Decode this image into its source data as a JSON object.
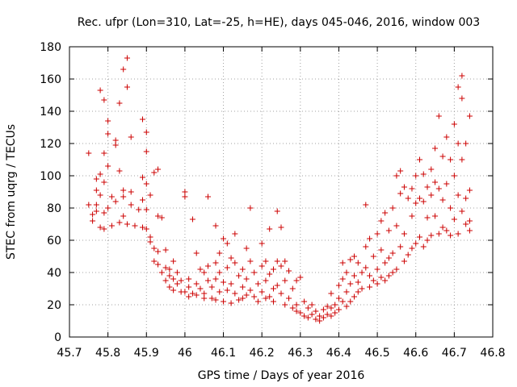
{
  "chart_data": {
    "type": "scatter",
    "title": "Rec. ufpr (Lon=310, Lat=-25, h=HE), days 045-046, 2016, window 003",
    "xlabel": "GPS time / Days of year 2016",
    "ylabel": "STEC from uqrg / TECUs",
    "xlim": [
      45.7,
      46.8
    ],
    "ylim": [
      0,
      180
    ],
    "xticks": [
      45.7,
      45.8,
      45.9,
      46,
      46.1,
      46.2,
      46.3,
      46.4,
      46.5,
      46.6,
      46.7,
      46.8
    ],
    "xtick_labels": [
      "45.7",
      "45.8",
      "45.9",
      "46",
      "46.1",
      "46.2",
      "46.3",
      "46.4",
      "46.5",
      "46.6",
      "46.7",
      "46.8"
    ],
    "yticks": [
      0,
      20,
      40,
      60,
      80,
      100,
      120,
      140,
      160,
      180
    ],
    "ytick_labels": [
      "0",
      "20",
      "40",
      "60",
      "80",
      "100",
      "120",
      "140",
      "160",
      "180"
    ],
    "grid": true,
    "grid_style": "dotted",
    "marker": "plus",
    "series": [
      {
        "color": "#cc0000",
        "points": [
          [
            45.75,
            114
          ],
          [
            45.75,
            82
          ],
          [
            45.76,
            76
          ],
          [
            45.76,
            72
          ],
          [
            45.77,
            98
          ],
          [
            45.77,
            91
          ],
          [
            45.77,
            82
          ],
          [
            45.77,
            78
          ],
          [
            45.78,
            68
          ],
          [
            45.78,
            153
          ],
          [
            45.78,
            101
          ],
          [
            45.78,
            88
          ],
          [
            45.79,
            147
          ],
          [
            45.79,
            114
          ],
          [
            45.79,
            96
          ],
          [
            45.79,
            77
          ],
          [
            45.79,
            67
          ],
          [
            45.8,
            134
          ],
          [
            45.8,
            126
          ],
          [
            45.8,
            106
          ],
          [
            45.8,
            80
          ],
          [
            45.81,
            69
          ],
          [
            45.81,
            87
          ],
          [
            45.82,
            122
          ],
          [
            45.82,
            119
          ],
          [
            45.82,
            84
          ],
          [
            45.83,
            145
          ],
          [
            45.83,
            103
          ],
          [
            45.83,
            71
          ],
          [
            45.84,
            166
          ],
          [
            45.84,
            91
          ],
          [
            45.84,
            87
          ],
          [
            45.84,
            75
          ],
          [
            45.85,
            173
          ],
          [
            45.85,
            155
          ],
          [
            45.85,
            70
          ],
          [
            45.86,
            124
          ],
          [
            45.86,
            90
          ],
          [
            45.86,
            82
          ],
          [
            45.87,
            69
          ],
          [
            45.88,
            79
          ],
          [
            45.89,
            135
          ],
          [
            45.89,
            99
          ],
          [
            45.89,
            85
          ],
          [
            45.89,
            68
          ],
          [
            45.9,
            127
          ],
          [
            45.9,
            115
          ],
          [
            45.9,
            95
          ],
          [
            45.9,
            79
          ],
          [
            45.9,
            67
          ],
          [
            45.91,
            88
          ],
          [
            45.91,
            62
          ],
          [
            45.91,
            59
          ],
          [
            45.92,
            102
          ],
          [
            45.92,
            55
          ],
          [
            45.92,
            47
          ],
          [
            45.93,
            104
          ],
          [
            45.93,
            75
          ],
          [
            45.93,
            53
          ],
          [
            45.93,
            45
          ],
          [
            45.94,
            74
          ],
          [
            45.94,
            40
          ],
          [
            45.95,
            54
          ],
          [
            45.95,
            43
          ],
          [
            45.95,
            35
          ],
          [
            45.96,
            42
          ],
          [
            45.96,
            38
          ],
          [
            45.96,
            31
          ],
          [
            45.97,
            47
          ],
          [
            45.97,
            36
          ],
          [
            45.97,
            29
          ],
          [
            45.98,
            40
          ],
          [
            45.98,
            33
          ],
          [
            45.99,
            35
          ],
          [
            45.99,
            28
          ],
          [
            46.0,
            90
          ],
          [
            46.0,
            87
          ],
          [
            46.0,
            28
          ],
          [
            46.01,
            36
          ],
          [
            46.01,
            31
          ],
          [
            46.01,
            25
          ],
          [
            46.02,
            73
          ],
          [
            46.02,
            27
          ],
          [
            46.03,
            52
          ],
          [
            46.03,
            33
          ],
          [
            46.03,
            26
          ],
          [
            46.04,
            42
          ],
          [
            46.04,
            30
          ],
          [
            46.05,
            40
          ],
          [
            46.05,
            27
          ],
          [
            46.05,
            24
          ],
          [
            46.06,
            87
          ],
          [
            46.06,
            44
          ],
          [
            46.06,
            35
          ],
          [
            46.07,
            31
          ],
          [
            46.07,
            24
          ],
          [
            46.08,
            69
          ],
          [
            46.08,
            46
          ],
          [
            46.08,
            36
          ],
          [
            46.08,
            23
          ],
          [
            46.09,
            52
          ],
          [
            46.09,
            40
          ],
          [
            46.09,
            28
          ],
          [
            46.1,
            61
          ],
          [
            46.1,
            34
          ],
          [
            46.1,
            22
          ],
          [
            46.11,
            58
          ],
          [
            46.11,
            43
          ],
          [
            46.11,
            29
          ],
          [
            46.12,
            49
          ],
          [
            46.12,
            33
          ],
          [
            46.12,
            21
          ],
          [
            46.13,
            64
          ],
          [
            46.13,
            46
          ],
          [
            46.13,
            27
          ],
          [
            46.14,
            38
          ],
          [
            46.14,
            23
          ],
          [
            46.15,
            42
          ],
          [
            46.15,
            31
          ],
          [
            46.15,
            24
          ],
          [
            46.16,
            55
          ],
          [
            46.16,
            36
          ],
          [
            46.16,
            26
          ],
          [
            46.17,
            80
          ],
          [
            46.17,
            47
          ],
          [
            46.17,
            29
          ],
          [
            46.18,
            40
          ],
          [
            46.18,
            25
          ],
          [
            46.19,
            33
          ],
          [
            46.19,
            22
          ],
          [
            46.2,
            58
          ],
          [
            46.2,
            44
          ],
          [
            46.2,
            28
          ],
          [
            46.21,
            47
          ],
          [
            46.21,
            35
          ],
          [
            46.21,
            24
          ],
          [
            46.22,
            67
          ],
          [
            46.22,
            39
          ],
          [
            46.22,
            25
          ],
          [
            46.23,
            42
          ],
          [
            46.23,
            30
          ],
          [
            46.23,
            22
          ],
          [
            46.24,
            78
          ],
          [
            46.24,
            47
          ],
          [
            46.24,
            32
          ],
          [
            46.25,
            68
          ],
          [
            46.25,
            44
          ],
          [
            46.25,
            27
          ],
          [
            46.26,
            47
          ],
          [
            46.26,
            35
          ],
          [
            46.26,
            20
          ],
          [
            46.27,
            41
          ],
          [
            46.27,
            24
          ],
          [
            46.28,
            30
          ],
          [
            46.28,
            18
          ],
          [
            46.29,
            35
          ],
          [
            46.29,
            20
          ],
          [
            46.29,
            16
          ],
          [
            46.3,
            37
          ],
          [
            46.3,
            15
          ],
          [
            46.31,
            22
          ],
          [
            46.31,
            13
          ],
          [
            46.32,
            18
          ],
          [
            46.32,
            12
          ],
          [
            46.33,
            20
          ],
          [
            46.33,
            14
          ],
          [
            46.34,
            16
          ],
          [
            46.34,
            11
          ],
          [
            46.35,
            13
          ],
          [
            46.35,
            10
          ],
          [
            46.36,
            17
          ],
          [
            46.36,
            12
          ],
          [
            46.37,
            19
          ],
          [
            46.37,
            14
          ],
          [
            46.38,
            27
          ],
          [
            46.38,
            18
          ],
          [
            46.38,
            13
          ],
          [
            46.39,
            20
          ],
          [
            46.39,
            15
          ],
          [
            46.4,
            32
          ],
          [
            46.4,
            24
          ],
          [
            46.4,
            17
          ],
          [
            46.41,
            46
          ],
          [
            46.41,
            36
          ],
          [
            46.41,
            22
          ],
          [
            46.42,
            40
          ],
          [
            46.42,
            28
          ],
          [
            46.42,
            19
          ],
          [
            46.43,
            48
          ],
          [
            46.43,
            33
          ],
          [
            46.43,
            22
          ],
          [
            46.44,
            50
          ],
          [
            46.44,
            38
          ],
          [
            46.44,
            25
          ],
          [
            46.45,
            46
          ],
          [
            46.45,
            34
          ],
          [
            46.45,
            28
          ],
          [
            46.46,
            40
          ],
          [
            46.46,
            30
          ],
          [
            46.47,
            82
          ],
          [
            46.47,
            56
          ],
          [
            46.47,
            43
          ],
          [
            46.48,
            61
          ],
          [
            46.48,
            38
          ],
          [
            46.48,
            31
          ],
          [
            46.49,
            50
          ],
          [
            46.49,
            35
          ],
          [
            46.5,
            64
          ],
          [
            46.5,
            42
          ],
          [
            46.5,
            33
          ],
          [
            46.51,
            72
          ],
          [
            46.51,
            54
          ],
          [
            46.51,
            37
          ],
          [
            46.52,
            77
          ],
          [
            46.52,
            46
          ],
          [
            46.52,
            35
          ],
          [
            46.53,
            66
          ],
          [
            46.53,
            49
          ],
          [
            46.53,
            38
          ],
          [
            46.54,
            80
          ],
          [
            46.54,
            52
          ],
          [
            46.54,
            40
          ],
          [
            46.55,
            100
          ],
          [
            46.55,
            69
          ],
          [
            46.55,
            42
          ],
          [
            46.56,
            103
          ],
          [
            46.56,
            89
          ],
          [
            46.56,
            56
          ],
          [
            46.57,
            93
          ],
          [
            46.57,
            64
          ],
          [
            46.57,
            47
          ],
          [
            46.58,
            86
          ],
          [
            46.58,
            51
          ],
          [
            46.59,
            92
          ],
          [
            46.59,
            75
          ],
          [
            46.59,
            55
          ],
          [
            46.6,
            100
          ],
          [
            46.6,
            83
          ],
          [
            46.6,
            58
          ],
          [
            46.61,
            110
          ],
          [
            46.61,
            86
          ],
          [
            46.61,
            62
          ],
          [
            46.62,
            101
          ],
          [
            46.62,
            84
          ],
          [
            46.62,
            56
          ],
          [
            46.63,
            93
          ],
          [
            46.63,
            74
          ],
          [
            46.63,
            60
          ],
          [
            46.64,
            104
          ],
          [
            46.64,
            88
          ],
          [
            46.64,
            63
          ],
          [
            46.65,
            117
          ],
          [
            46.65,
            96
          ],
          [
            46.65,
            75
          ],
          [
            46.66,
            137
          ],
          [
            46.66,
            92
          ],
          [
            46.66,
            64
          ],
          [
            46.67,
            112
          ],
          [
            46.67,
            85
          ],
          [
            46.67,
            68
          ],
          [
            46.68,
            124
          ],
          [
            46.68,
            95
          ],
          [
            46.68,
            66
          ],
          [
            46.69,
            110
          ],
          [
            46.69,
            80
          ],
          [
            46.69,
            63
          ],
          [
            46.7,
            132
          ],
          [
            46.7,
            100
          ],
          [
            46.7,
            73
          ],
          [
            46.71,
            155
          ],
          [
            46.71,
            120
          ],
          [
            46.71,
            88
          ],
          [
            46.71,
            64
          ],
          [
            46.72,
            162
          ],
          [
            46.72,
            148
          ],
          [
            46.72,
            110
          ],
          [
            46.72,
            78
          ],
          [
            46.73,
            120
          ],
          [
            46.73,
            86
          ],
          [
            46.73,
            70
          ],
          [
            46.74,
            137
          ],
          [
            46.74,
            91
          ],
          [
            46.74,
            72
          ],
          [
            46.74,
            66
          ]
        ]
      }
    ]
  }
}
